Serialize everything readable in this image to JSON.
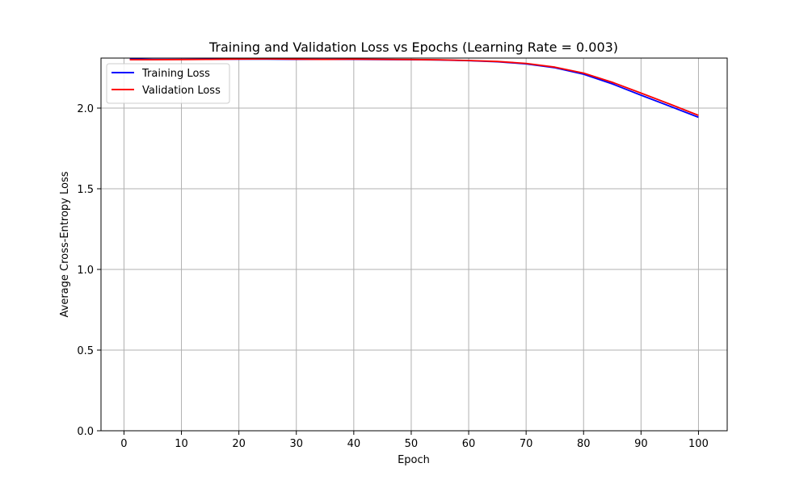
{
  "chart_data": {
    "type": "line",
    "title": "Training and Validation Loss vs Epochs (Learning Rate = 0.003)",
    "xlabel": "Epoch",
    "ylabel": "Average Cross-Entropy Loss",
    "xlim": [
      -4,
      105
    ],
    "ylim": [
      0.0,
      2.31
    ],
    "xticks": [
      0,
      10,
      20,
      30,
      40,
      50,
      60,
      70,
      80,
      90,
      100
    ],
    "xtick_labels": [
      "0",
      "10",
      "20",
      "30",
      "40",
      "50",
      "60",
      "70",
      "80",
      "90",
      "100"
    ],
    "yticks": [
      0.0,
      0.5,
      1.0,
      1.5,
      2.0
    ],
    "ytick_labels": [
      "0.0",
      "0.5",
      "1.0",
      "1.5",
      "2.0"
    ],
    "grid": true,
    "legend": {
      "placement": "upper-left"
    },
    "x": [
      1,
      5,
      10,
      15,
      20,
      25,
      30,
      35,
      40,
      45,
      50,
      55,
      60,
      65,
      70,
      75,
      80,
      85,
      90,
      95,
      100
    ],
    "series": [
      {
        "name": "Training Loss",
        "color": "#0000ff",
        "values": [
          2.304,
          2.302,
          2.302,
          2.303,
          2.303,
          2.303,
          2.302,
          2.302,
          2.302,
          2.301,
          2.3,
          2.298,
          2.294,
          2.287,
          2.274,
          2.25,
          2.21,
          2.15,
          2.08,
          2.012,
          1.943
        ]
      },
      {
        "name": "Validation Loss",
        "color": "#ff0000",
        "values": [
          2.3,
          2.3,
          2.301,
          2.302,
          2.304,
          2.305,
          2.303,
          2.302,
          2.303,
          2.302,
          2.301,
          2.299,
          2.295,
          2.289,
          2.277,
          2.254,
          2.217,
          2.16,
          2.093,
          2.025,
          1.955
        ]
      }
    ]
  }
}
